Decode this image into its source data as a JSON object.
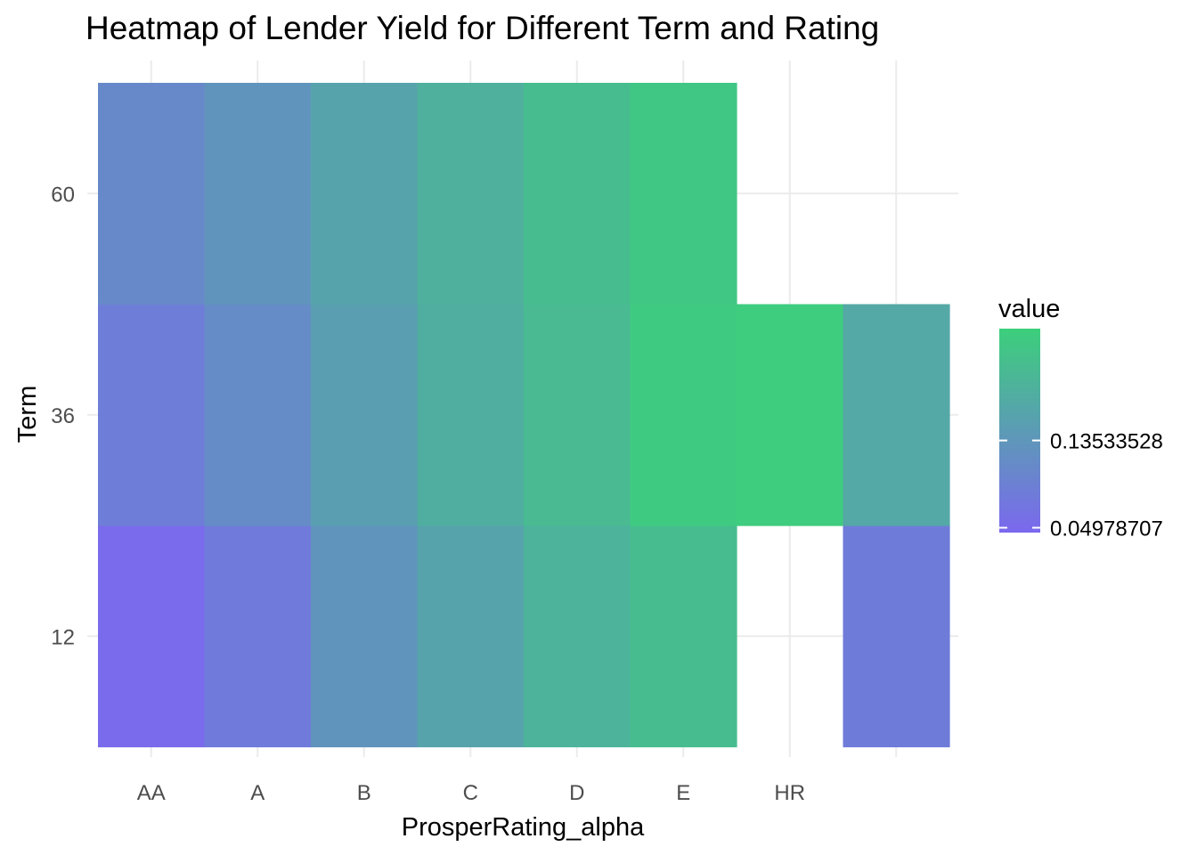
{
  "chart_data": {
    "type": "heatmap",
    "title": "Heatmap of Lender Yield for Different Term and Rating",
    "xlabel": "ProsperRating_alpha",
    "ylabel": "Term",
    "x_categories": [
      "AA",
      "A",
      "B",
      "C",
      "D",
      "E",
      "HR",
      ""
    ],
    "y_categories": [
      "12",
      "36",
      "60"
    ],
    "cells": [
      {
        "x": "AA",
        "y": "12",
        "value": 0.05
      },
      {
        "x": "A",
        "y": "12",
        "value": 0.08
      },
      {
        "x": "B",
        "y": "12",
        "value": 0.13
      },
      {
        "x": "C",
        "y": "12",
        "value": 0.16
      },
      {
        "x": "D",
        "y": "12",
        "value": 0.19
      },
      {
        "x": "E",
        "y": "12",
        "value": 0.21
      },
      {
        "x": "",
        "y": "12",
        "value": 0.082
      },
      {
        "x": "AA",
        "y": "36",
        "value": 0.085
      },
      {
        "x": "A",
        "y": "36",
        "value": 0.115
      },
      {
        "x": "B",
        "y": "36",
        "value": 0.15
      },
      {
        "x": "C",
        "y": "36",
        "value": 0.18
      },
      {
        "x": "D",
        "y": "36",
        "value": 0.205
      },
      {
        "x": "E",
        "y": "36",
        "value": 0.235
      },
      {
        "x": "HR",
        "y": "36",
        "value": 0.24
      },
      {
        "x": "",
        "y": "36",
        "value": 0.17
      },
      {
        "x": "AA",
        "y": "60",
        "value": 0.11
      },
      {
        "x": "A",
        "y": "60",
        "value": 0.13
      },
      {
        "x": "B",
        "y": "60",
        "value": 0.16
      },
      {
        "x": "C",
        "y": "60",
        "value": 0.185
      },
      {
        "x": "D",
        "y": "60",
        "value": 0.21
      },
      {
        "x": "E",
        "y": "60",
        "value": 0.23
      }
    ],
    "legend": {
      "title": "value",
      "position": "right",
      "breaks": [
        0.04978707,
        0.13533528
      ],
      "break_labels": [
        "0.04978707",
        "0.13533528"
      ],
      "range": [
        0.045,
        0.245
      ],
      "low_color": "#7B68EE",
      "high_color": "#3CCF7B"
    },
    "grid": true
  }
}
